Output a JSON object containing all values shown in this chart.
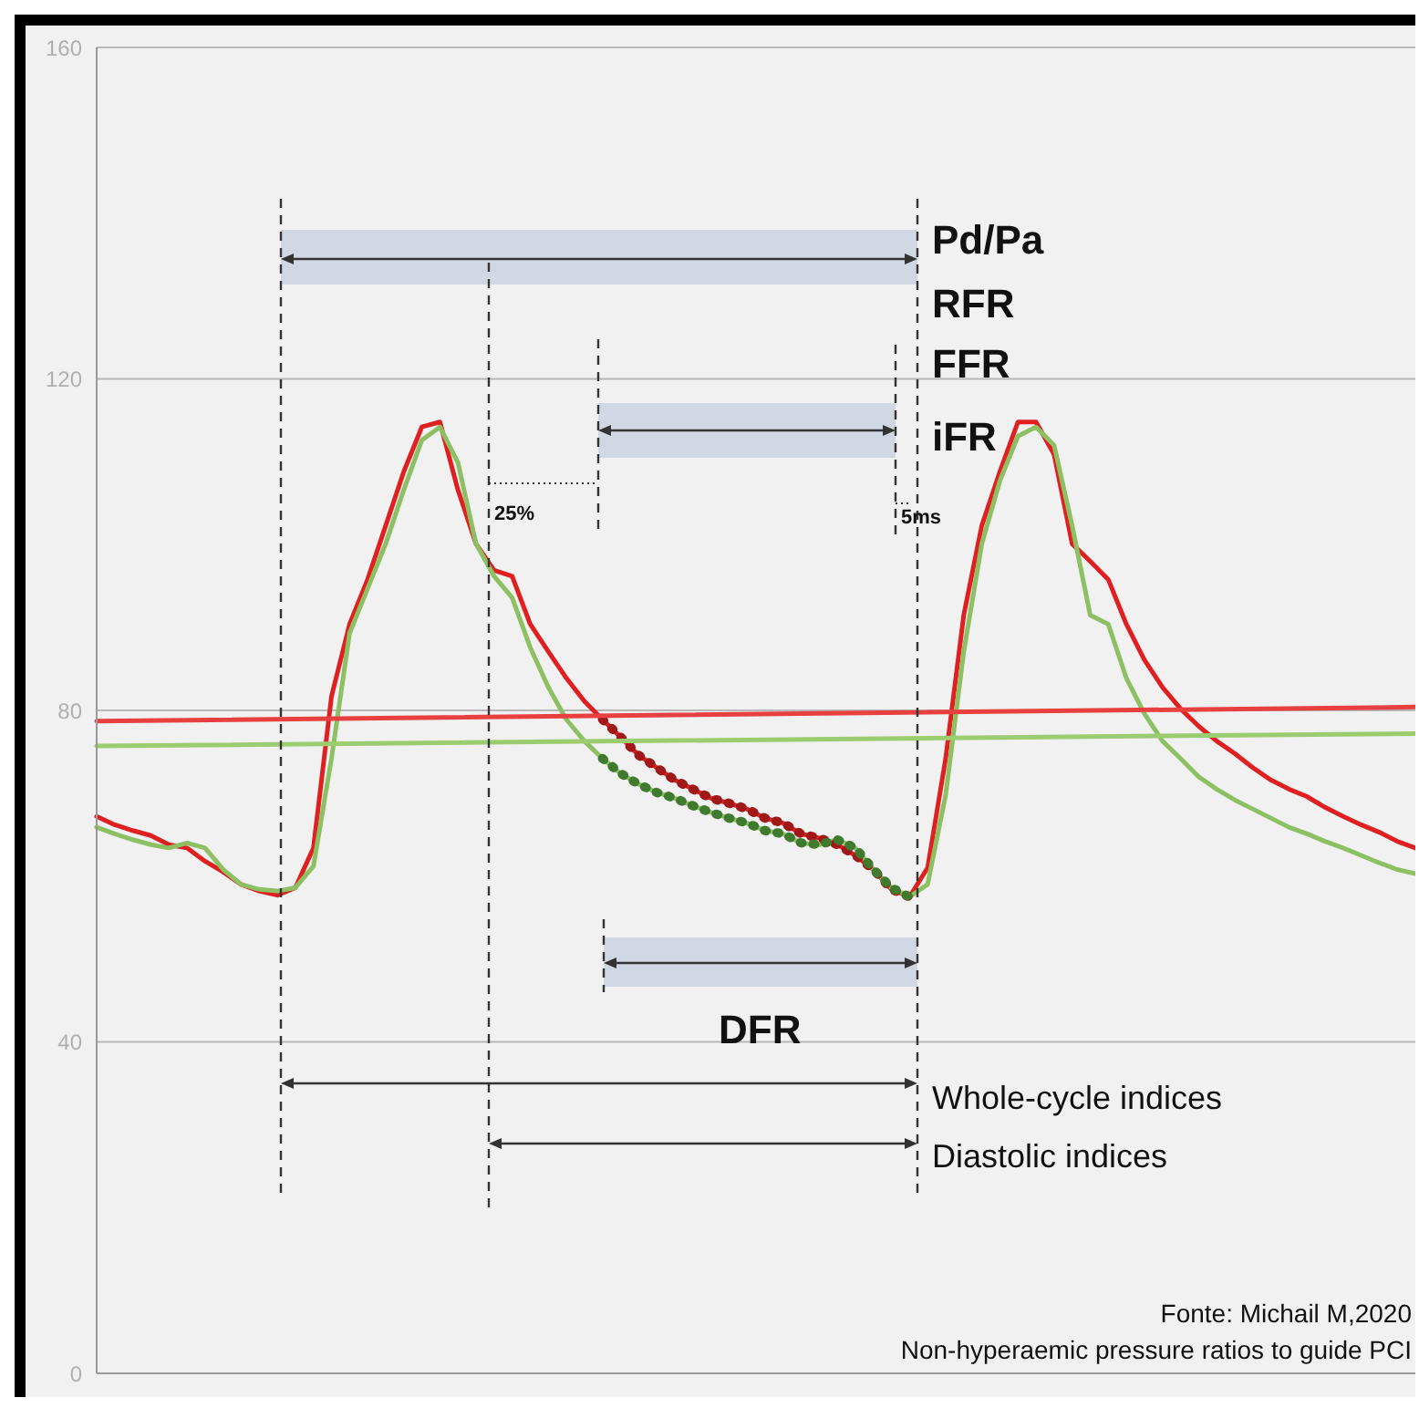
{
  "chart_data": {
    "type": "line",
    "categories": [
      null,
      null,
      null,
      null,
      null,
      null,
      null,
      null,
      null,
      null,
      null,
      null,
      null,
      null,
      null,
      null,
      null,
      null,
      null,
      null,
      null,
      null,
      null,
      null,
      null,
      null,
      null,
      null,
      null,
      null,
      null,
      null,
      null,
      null,
      null,
      null,
      null,
      null,
      null,
      null,
      null,
      null,
      null,
      null,
      null,
      null,
      null,
      null,
      null,
      null,
      null,
      null,
      null,
      null,
      null,
      null,
      null,
      null,
      null,
      null,
      null,
      null,
      null,
      null,
      null,
      null,
      null,
      null,
      null,
      null,
      null,
      null,
      null,
      null
    ],
    "series": [
      {
        "color": "#e02020",
        "values": [
          67.2,
          66.2,
          65.5,
          64.9,
          63.8,
          63.4,
          61.8,
          60.5,
          59.0,
          58.2,
          57.7,
          58.6,
          63.4,
          81.7,
          90.4,
          95.8,
          102.3,
          108.8,
          114.2,
          114.8,
          106.6,
          100.1,
          96.9,
          96.2,
          90.4,
          87.1,
          83.9,
          81.1,
          78.9,
          76.8,
          74.6,
          73.1,
          71.6,
          70.5,
          69.4,
          68.8,
          68.1,
          67.0,
          66.4,
          65.1,
          64.6,
          63.8,
          62.5,
          60.8,
          58.4,
          57.5,
          61.0,
          74.2,
          91.5,
          102.3,
          108.8,
          114.8,
          114.8,
          110.9,
          100.1,
          98.0,
          95.8,
          90.4,
          86.1,
          82.8,
          80.2,
          78.1,
          76.3,
          74.8,
          73.1,
          71.6,
          70.5,
          69.6,
          68.3,
          67.2,
          66.2,
          65.3,
          64.2,
          63.4
        ]
      },
      {
        "color": "#8cc063",
        "values": [
          65.9,
          65.1,
          64.4,
          63.8,
          63.4,
          64.0,
          63.4,
          60.8,
          59.0,
          58.4,
          58.2,
          58.6,
          61.2,
          74.2,
          89.3,
          94.7,
          100.1,
          106.6,
          112.6,
          114.2,
          109.9,
          100.1,
          96.2,
          93.6,
          87.6,
          82.8,
          78.9,
          76.3,
          74.2,
          72.4,
          71.1,
          70.1,
          69.4,
          68.5,
          67.7,
          67.0,
          66.4,
          65.5,
          65.1,
          64.0,
          63.8,
          64.4,
          63.4,
          60.8,
          58.6,
          57.5,
          59.0,
          69.8,
          87.1,
          100.1,
          107.7,
          113.1,
          114.2,
          112.0,
          102.3,
          91.5,
          90.4,
          83.9,
          79.6,
          76.3,
          74.2,
          72.0,
          70.5,
          69.2,
          68.1,
          67.0,
          65.9,
          65.1,
          64.2,
          63.4,
          62.5,
          61.6,
          60.8,
          60.3
        ]
      },
      {
        "color": "#a01818",
        "line_style": "dotted",
        "values": [
          null,
          null,
          null,
          null,
          null,
          null,
          null,
          null,
          null,
          null,
          null,
          null,
          null,
          null,
          null,
          null,
          null,
          null,
          null,
          null,
          null,
          null,
          null,
          null,
          null,
          null,
          null,
          null,
          78.9,
          76.8,
          74.6,
          73.1,
          71.6,
          70.5,
          69.4,
          68.8,
          68.1,
          67.0,
          66.4,
          65.1,
          64.6,
          63.8,
          62.5,
          60.8,
          58.4,
          57.5,
          null,
          null,
          null,
          null,
          null,
          null,
          null,
          null,
          null,
          null,
          null,
          null,
          null,
          null,
          null,
          null,
          null,
          null,
          null,
          null,
          null,
          null,
          null,
          null,
          null,
          null,
          null,
          null
        ]
      },
      {
        "color": "#3f7a2e",
        "line_style": "dotted",
        "values": [
          null,
          null,
          null,
          null,
          null,
          null,
          null,
          null,
          null,
          null,
          null,
          null,
          null,
          null,
          null,
          null,
          null,
          null,
          null,
          null,
          null,
          null,
          null,
          null,
          null,
          null,
          null,
          null,
          74.2,
          72.4,
          71.1,
          70.1,
          69.4,
          68.5,
          67.7,
          67.0,
          66.4,
          65.5,
          65.1,
          64.0,
          63.8,
          64.4,
          63.4,
          60.8,
          58.6,
          57.5,
          null,
          null,
          null,
          null,
          null,
          null,
          null,
          null,
          null,
          null,
          null,
          null,
          null,
          null,
          null,
          null,
          null,
          null,
          null,
          null,
          null,
          null,
          null,
          null,
          null,
          null,
          null,
          null
        ]
      },
      {
        "color": "#e84040",
        "values": [
          78.7,
          null,
          null,
          null,
          null,
          null,
          null,
          null,
          null,
          null,
          null,
          null,
          null,
          null,
          null,
          null,
          null,
          null,
          null,
          null,
          null,
          null,
          null,
          null,
          null,
          null,
          null,
          null,
          null,
          null,
          null,
          null,
          null,
          null,
          null,
          null,
          null,
          null,
          null,
          null,
          null,
          null,
          null,
          null,
          null,
          null,
          null,
          null,
          null,
          null,
          null,
          null,
          null,
          null,
          null,
          null,
          null,
          null,
          null,
          null,
          null,
          null,
          null,
          null,
          null,
          null,
          null,
          null,
          null,
          null,
          null,
          null,
          null,
          80.4
        ]
      },
      {
        "color": "#9ccc70",
        "values": [
          75.7,
          null,
          null,
          null,
          null,
          null,
          null,
          null,
          null,
          null,
          null,
          null,
          null,
          null,
          null,
          null,
          null,
          null,
          null,
          null,
          null,
          null,
          null,
          null,
          null,
          null,
          null,
          null,
          null,
          null,
          null,
          null,
          null,
          null,
          null,
          null,
          null,
          null,
          null,
          null,
          null,
          null,
          null,
          null,
          null,
          null,
          null,
          null,
          null,
          null,
          null,
          null,
          null,
          null,
          null,
          null,
          null,
          null,
          null,
          null,
          null,
          null,
          null,
          null,
          null,
          null,
          null,
          null,
          null,
          null,
          null,
          null,
          null,
          77.2
        ]
      }
    ],
    "ylim": [
      0,
      160
    ],
    "yticks": [
      0,
      40,
      80,
      120,
      160
    ],
    "grid": "y",
    "tick_labels": "y",
    "marker": "none",
    "line_style": "solid",
    "annotations": [
      "Pd/Pa",
      "RFR",
      "FFR",
      "iFR",
      "25%",
      "5ms",
      "DFR",
      "Whole-cycle indices",
      "Diastolic indices",
      "Fonte: Michail M,2020",
      "Non-hyperaemic pressure ratios to guide PCI"
    ]
  }
}
